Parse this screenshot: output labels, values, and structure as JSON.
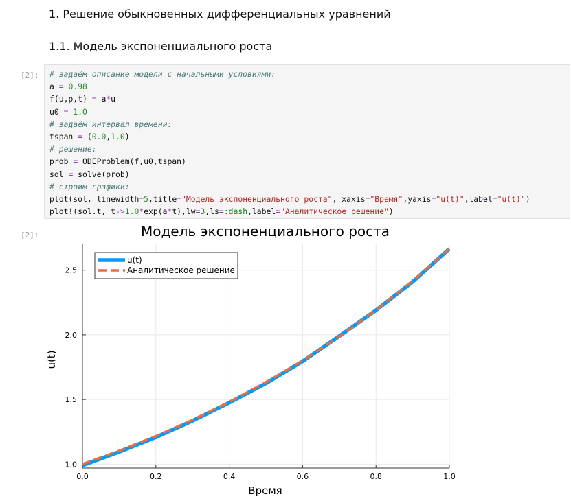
{
  "heading1": "1. Решение обыкновенных дифференциальных уравнений",
  "heading2": "1.1. Модель экспоненциального роста",
  "input_prompt": "[2]:",
  "output_prompt": "[2]:",
  "code_lines": [
    [
      {
        "t": "# задаём описание модели с начальными условиями:",
        "c": "cm"
      }
    ],
    [
      {
        "t": "a "
      },
      {
        "t": "=",
        "c": "op"
      },
      {
        "t": " "
      },
      {
        "t": "0.98",
        "c": "num"
      }
    ],
    [
      {
        "t": "f(u,p,t) "
      },
      {
        "t": "=",
        "c": "op"
      },
      {
        "t": " a"
      },
      {
        "t": "*",
        "c": "op"
      },
      {
        "t": "u"
      }
    ],
    [
      {
        "t": "u0 "
      },
      {
        "t": "=",
        "c": "op"
      },
      {
        "t": " "
      },
      {
        "t": "1.0",
        "c": "num"
      }
    ],
    [
      {
        "t": "# задаём интервал времени:",
        "c": "cm"
      }
    ],
    [
      {
        "t": "tspan "
      },
      {
        "t": "=",
        "c": "op"
      },
      {
        "t": " ("
      },
      {
        "t": "0.0",
        "c": "num"
      },
      {
        "t": ","
      },
      {
        "t": "1.0",
        "c": "num"
      },
      {
        "t": ")"
      }
    ],
    [
      {
        "t": "# решение:",
        "c": "cm"
      }
    ],
    [
      {
        "t": "prob "
      },
      {
        "t": "=",
        "c": "op"
      },
      {
        "t": " ODEProblem(f,u0,tspan)"
      }
    ],
    [
      {
        "t": "sol "
      },
      {
        "t": "=",
        "c": "op"
      },
      {
        "t": " solve(prob)"
      }
    ],
    [
      {
        "t": "# строим графики:",
        "c": "cm"
      }
    ],
    [
      {
        "t": "plot(sol, linewidth"
      },
      {
        "t": "=",
        "c": "op"
      },
      {
        "t": "5",
        "c": "num"
      },
      {
        "t": ",title"
      },
      {
        "t": "=",
        "c": "op"
      },
      {
        "t": "\"Модель экспоненциального роста\"",
        "c": "str"
      },
      {
        "t": ", xaxis"
      },
      {
        "t": "=",
        "c": "op"
      },
      {
        "t": "\"Время\"",
        "c": "str"
      },
      {
        "t": ",yaxis"
      },
      {
        "t": "=",
        "c": "op"
      },
      {
        "t": "\"u(t)\"",
        "c": "str"
      },
      {
        "t": ",label"
      },
      {
        "t": "=",
        "c": "op"
      },
      {
        "t": "\"u(t)\"",
        "c": "str"
      },
      {
        "t": ")"
      }
    ],
    [
      {
        "t": "plot!(sol.t, t"
      },
      {
        "t": "->",
        "c": "op"
      },
      {
        "t": "1.0",
        "c": "num"
      },
      {
        "t": "*",
        "c": "op"
      },
      {
        "t": "exp(a"
      },
      {
        "t": "*",
        "c": "op"
      },
      {
        "t": "t),lw"
      },
      {
        "t": "=",
        "c": "op"
      },
      {
        "t": "3",
        "c": "num"
      },
      {
        "t": ",ls"
      },
      {
        "t": "=",
        "c": "op"
      },
      {
        "t": ":dash",
        "c": "kw"
      },
      {
        "t": ",label"
      },
      {
        "t": "=",
        "c": "op"
      },
      {
        "t": "\"Аналитическое решение\"",
        "c": "str"
      },
      {
        "t": ")"
      }
    ]
  ],
  "chart_data": {
    "type": "line",
    "title": "Модель экспоненциального роста",
    "xlabel": "Время",
    "ylabel": "u(t)",
    "xlim": [
      0,
      1
    ],
    "ylim": [
      0.97,
      2.7
    ],
    "xticks": [
      "0.0",
      "0.2",
      "0.4",
      "0.6",
      "0.8",
      "1.0"
    ],
    "yticks": [
      "1.0",
      "1.5",
      "2.0",
      "2.5"
    ],
    "grid": true,
    "legend": "top-left",
    "series": [
      {
        "name": "u(t)",
        "color": "#009AFA",
        "style": "solid",
        "x": [
          0,
          0.1,
          0.2,
          0.3,
          0.4,
          0.5,
          0.6,
          0.7,
          0.8,
          0.9,
          1.0
        ],
        "y": [
          0.99,
          1.095,
          1.208,
          1.335,
          1.475,
          1.625,
          1.795,
          1.99,
          2.19,
          2.41,
          2.665
        ]
      },
      {
        "name": "Аналитическое решение",
        "color": "#E26F46",
        "style": "dash",
        "x": [
          0,
          0.1,
          0.2,
          0.3,
          0.4,
          0.5,
          0.6,
          0.7,
          0.8,
          0.9,
          1.0
        ],
        "y": [
          1.0,
          1.103,
          1.217,
          1.342,
          1.48,
          1.634,
          1.8,
          1.986,
          2.191,
          2.417,
          2.664
        ]
      }
    ]
  }
}
